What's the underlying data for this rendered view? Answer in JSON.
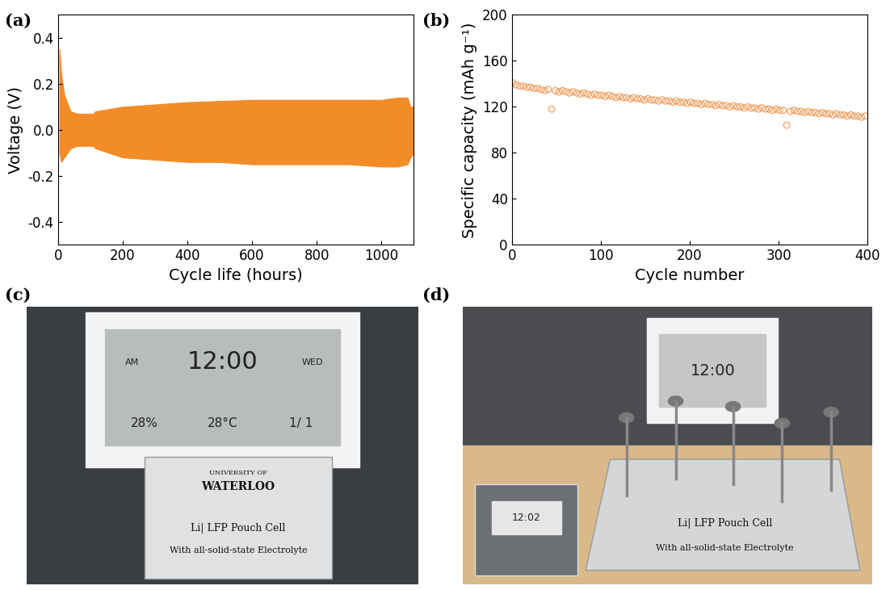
{
  "chart_data": [
    {
      "label": "(a)",
      "type": "band",
      "color": "#f28c28",
      "x_label": "Cycle life (hours)",
      "y_label": "Voltage (V)",
      "x": [
        5,
        10,
        20,
        40,
        60,
        80,
        100,
        110,
        115,
        200,
        300,
        400,
        500,
        600,
        700,
        800,
        900,
        1000,
        1050,
        1080,
        1090,
        1100
      ],
      "upper": [
        0.35,
        0.25,
        0.15,
        0.08,
        0.07,
        0.07,
        0.07,
        0.07,
        0.08,
        0.1,
        0.11,
        0.12,
        0.125,
        0.13,
        0.13,
        0.13,
        0.13,
        0.13,
        0.14,
        0.14,
        0.1,
        0.1
      ],
      "lower": [
        -0.1,
        -0.14,
        -0.12,
        -0.08,
        -0.07,
        -0.07,
        -0.07,
        -0.07,
        -0.08,
        -0.12,
        -0.13,
        -0.14,
        -0.14,
        -0.15,
        -0.15,
        -0.15,
        -0.15,
        -0.16,
        -0.16,
        -0.15,
        -0.12,
        -0.1
      ],
      "xlim": [
        0,
        1100
      ],
      "xticks": [
        0,
        200,
        400,
        600,
        800,
        1000
      ],
      "ylim": [
        -0.5,
        0.5
      ],
      "yticks": [
        -0.4,
        -0.2,
        0.0,
        0.2,
        0.4
      ]
    },
    {
      "label": "(b)",
      "type": "scatter",
      "color": "#f0a060",
      "marker": "o",
      "x_label": "Cycle number",
      "y_label": "Specific capacity (mAh g⁻¹)",
      "x": [
        1,
        5,
        9,
        13,
        17,
        21,
        25,
        29,
        33,
        37,
        41,
        45,
        49,
        53,
        57,
        61,
        65,
        69,
        73,
        77,
        81,
        85,
        89,
        93,
        97,
        101,
        105,
        109,
        113,
        117,
        121,
        125,
        129,
        133,
        137,
        141,
        145,
        149,
        153,
        157,
        161,
        165,
        169,
        173,
        177,
        181,
        185,
        189,
        193,
        197,
        201,
        205,
        209,
        213,
        217,
        221,
        225,
        229,
        233,
        237,
        241,
        245,
        249,
        253,
        257,
        261,
        265,
        269,
        273,
        277,
        281,
        285,
        289,
        293,
        297,
        301,
        305,
        309,
        313,
        317,
        321,
        325,
        329,
        333,
        337,
        341,
        345,
        349,
        353,
        357,
        361,
        365,
        369,
        373,
        377,
        381,
        385,
        389,
        393,
        397
      ],
      "values": [
        141,
        139,
        138,
        138,
        137,
        137,
        136,
        136,
        135,
        134,
        135,
        118,
        134,
        133,
        134,
        133,
        132,
        133,
        132,
        131,
        132,
        131,
        130,
        131,
        130,
        130,
        129,
        130,
        129,
        128,
        129,
        128,
        128,
        127,
        128,
        127,
        127,
        126,
        127,
        126,
        126,
        125,
        126,
        125,
        125,
        124,
        125,
        124,
        124,
        123,
        124,
        123,
        123,
        122,
        123,
        122,
        122,
        121,
        122,
        121,
        121,
        120,
        121,
        120,
        120,
        119,
        120,
        119,
        119,
        118,
        119,
        118,
        118,
        117,
        118,
        117,
        117,
        104,
        116,
        117,
        116,
        116,
        115,
        116,
        115,
        115,
        114,
        115,
        114,
        114,
        113,
        114,
        113,
        113,
        112,
        113,
        112,
        112,
        111,
        112
      ],
      "xlim": [
        0,
        400
      ],
      "xticks": [
        0,
        100,
        200,
        300,
        400
      ],
      "ylim": [
        0,
        200
      ],
      "yticks": [
        0,
        40,
        80,
        120,
        160,
        200
      ]
    }
  ],
  "photos": [
    {
      "label": "(c)",
      "clock": [
        "AM",
        "12:00",
        "WED",
        "28%",
        "28°C",
        "1/ 1"
      ],
      "pouch": [
        "UNIVERSITY OF",
        "WATERLOO",
        "Li| LFP Pouch Cell",
        "With all-solid-state Electrolyte"
      ]
    },
    {
      "label": "(d)",
      "clock": [
        "12:00"
      ],
      "pouch": [
        "Li| LFP Pouch Cell",
        "With all-solid-state Electrolyte"
      ],
      "inset_clock": [
        "12:02"
      ]
    }
  ]
}
